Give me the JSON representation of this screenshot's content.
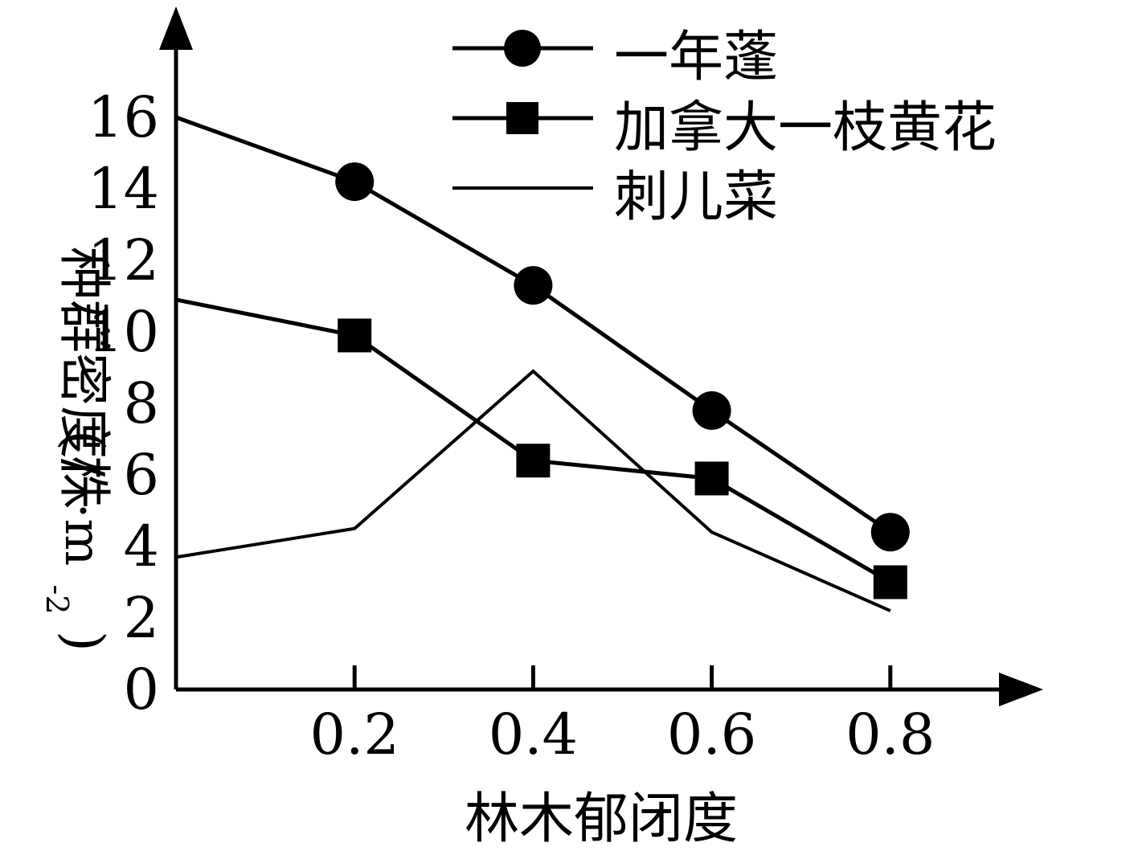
{
  "chart_data": {
    "type": "line",
    "title": "",
    "xlabel": "林木郁闭度",
    "ylabel_main": "种群密度/",
    "ylabel_paren_open": "(",
    "ylabel_unit_word": "株",
    "ylabel_unit_m": "·m",
    "ylabel_unit_exp": "-2",
    "ylabel_paren_close": ")",
    "x_ticks": [
      "0.2",
      "0.4",
      "0.6",
      "0.8"
    ],
    "x_tick_values": [
      0.2,
      0.4,
      0.6,
      0.8
    ],
    "y_ticks": [
      "0",
      "2",
      "4",
      "6",
      "8",
      "10",
      "12",
      "14",
      "16"
    ],
    "y_tick_values": [
      0,
      2,
      4,
      6,
      8,
      10,
      12,
      14,
      16
    ],
    "xlim": [
      0,
      0.95
    ],
    "ylim": [
      0,
      18
    ],
    "grid": false,
    "legend_position": "top-right",
    "series": [
      {
        "name": "一年蓬",
        "marker": "circle",
        "x": [
          0,
          0.2,
          0.4,
          0.6,
          0.8
        ],
        "y": [
          16.0,
          14.2,
          11.3,
          7.8,
          4.4
        ]
      },
      {
        "name": "加拿大一枝黄花",
        "marker": "square",
        "x": [
          0,
          0.2,
          0.4,
          0.6,
          0.8
        ],
        "y": [
          10.9,
          9.9,
          6.4,
          5.9,
          3.0
        ]
      },
      {
        "name": "刺儿菜",
        "marker": "none",
        "x": [
          0,
          0.2,
          0.4,
          0.6,
          0.8
        ],
        "y": [
          3.7,
          4.5,
          8.9,
          4.4,
          2.2
        ]
      }
    ]
  }
}
